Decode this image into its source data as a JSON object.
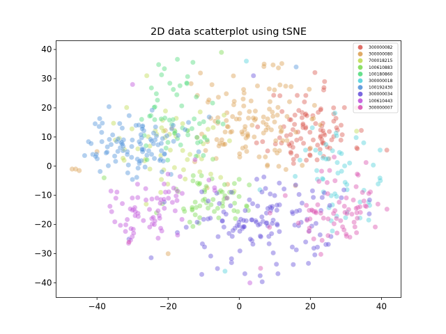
{
  "chart_data": {
    "type": "scatter",
    "title": "2D data scatterplot using tSNE",
    "xlabel": "",
    "ylabel": "",
    "xlim": [
      -51.5,
      45.5
    ],
    "ylim": [
      -45,
      43
    ],
    "xticks": [
      -40,
      -20,
      0,
      20,
      40
    ],
    "yticks": [
      -40,
      -30,
      -20,
      -10,
      0,
      10,
      20,
      30,
      40
    ],
    "grid": false,
    "legend_position": "top-right",
    "marker_alpha": 0.45,
    "series": [
      {
        "name": "300000082",
        "color": "#db5f57",
        "center": [
          20,
          13
        ],
        "spread": [
          6,
          7
        ],
        "count": 95,
        "seed": 11,
        "extra": [
          [
            41.5,
            5.5
          ],
          [
            33,
            20
          ],
          [
            24,
            29
          ]
        ]
      },
      {
        "name": "300000080",
        "color": "#dba157",
        "center": [
          3,
          15
        ],
        "spread": [
          8,
          8
        ],
        "count": 120,
        "seed": 22,
        "extra": [
          [
            -40,
            5
          ],
          [
            -20,
            -30
          ],
          [
            7,
            35
          ]
        ]
      },
      {
        "name": "700018215",
        "color": "#c1db57",
        "center": [
          -20,
          5
        ],
        "spread": [
          8,
          8
        ],
        "count": 55,
        "seed": 33,
        "extra": [
          [
            33,
            12
          ],
          [
            -26,
            31
          ]
        ]
      },
      {
        "name": "100610883",
        "color": "#7fdb57",
        "center": [
          -8,
          -12
        ],
        "spread": [
          6,
          6
        ],
        "count": 60,
        "seed": 44,
        "extra": [
          [
            -5,
            39
          ],
          [
            -38,
            -4
          ]
        ]
      },
      {
        "name": "100180860",
        "color": "#57db80",
        "center": [
          -17,
          15
        ],
        "spread": [
          6,
          9
        ],
        "count": 55,
        "seed": 55,
        "extra": []
      },
      {
        "name": "300000018",
        "color": "#57d3db",
        "center": [
          28,
          -5
        ],
        "spread": [
          7,
          10
        ],
        "count": 55,
        "seed": 66,
        "extra": [
          [
            2,
            36
          ],
          [
            -4,
            -36
          ],
          [
            35,
            8
          ]
        ]
      },
      {
        "name": "100192430",
        "color": "#5796db",
        "center": [
          -30,
          7
        ],
        "spread": [
          9,
          6
        ],
        "count": 100,
        "seed": 77,
        "extra": [
          [
            -46,
            -8
          ],
          [
            -45,
            -11
          ],
          [
            16,
            34
          ],
          [
            -38,
            24
          ]
        ]
      },
      {
        "name": "300000034",
        "color": "#6b57db",
        "center": [
          8,
          -20
        ],
        "spread": [
          10,
          8
        ],
        "count": 130,
        "seed": 88,
        "extra": [
          [
            11,
            -40
          ],
          [
            10,
            -41
          ],
          [
            4,
            31
          ],
          [
            -31,
            -25
          ]
        ]
      },
      {
        "name": "100610443",
        "color": "#c157db",
        "center": [
          -24,
          -15
        ],
        "spread": [
          7,
          6
        ],
        "count": 70,
        "seed": 99,
        "extra": [
          [
            -30,
            28
          ],
          [
            3,
            -40
          ]
        ]
      },
      {
        "name": "300000007",
        "color": "#db57b2",
        "center": [
          28,
          -16
        ],
        "spread": [
          8,
          7
        ],
        "count": 75,
        "seed": 111,
        "extra": [
          [
            -31,
            -26
          ],
          [
            39,
            -13
          ],
          [
            6,
            -35
          ]
        ]
      }
    ],
    "note_orange_strays": [
      [
        -47,
        -1
      ],
      [
        -46,
        -1
      ],
      [
        -45,
        -1.5
      ]
    ]
  }
}
